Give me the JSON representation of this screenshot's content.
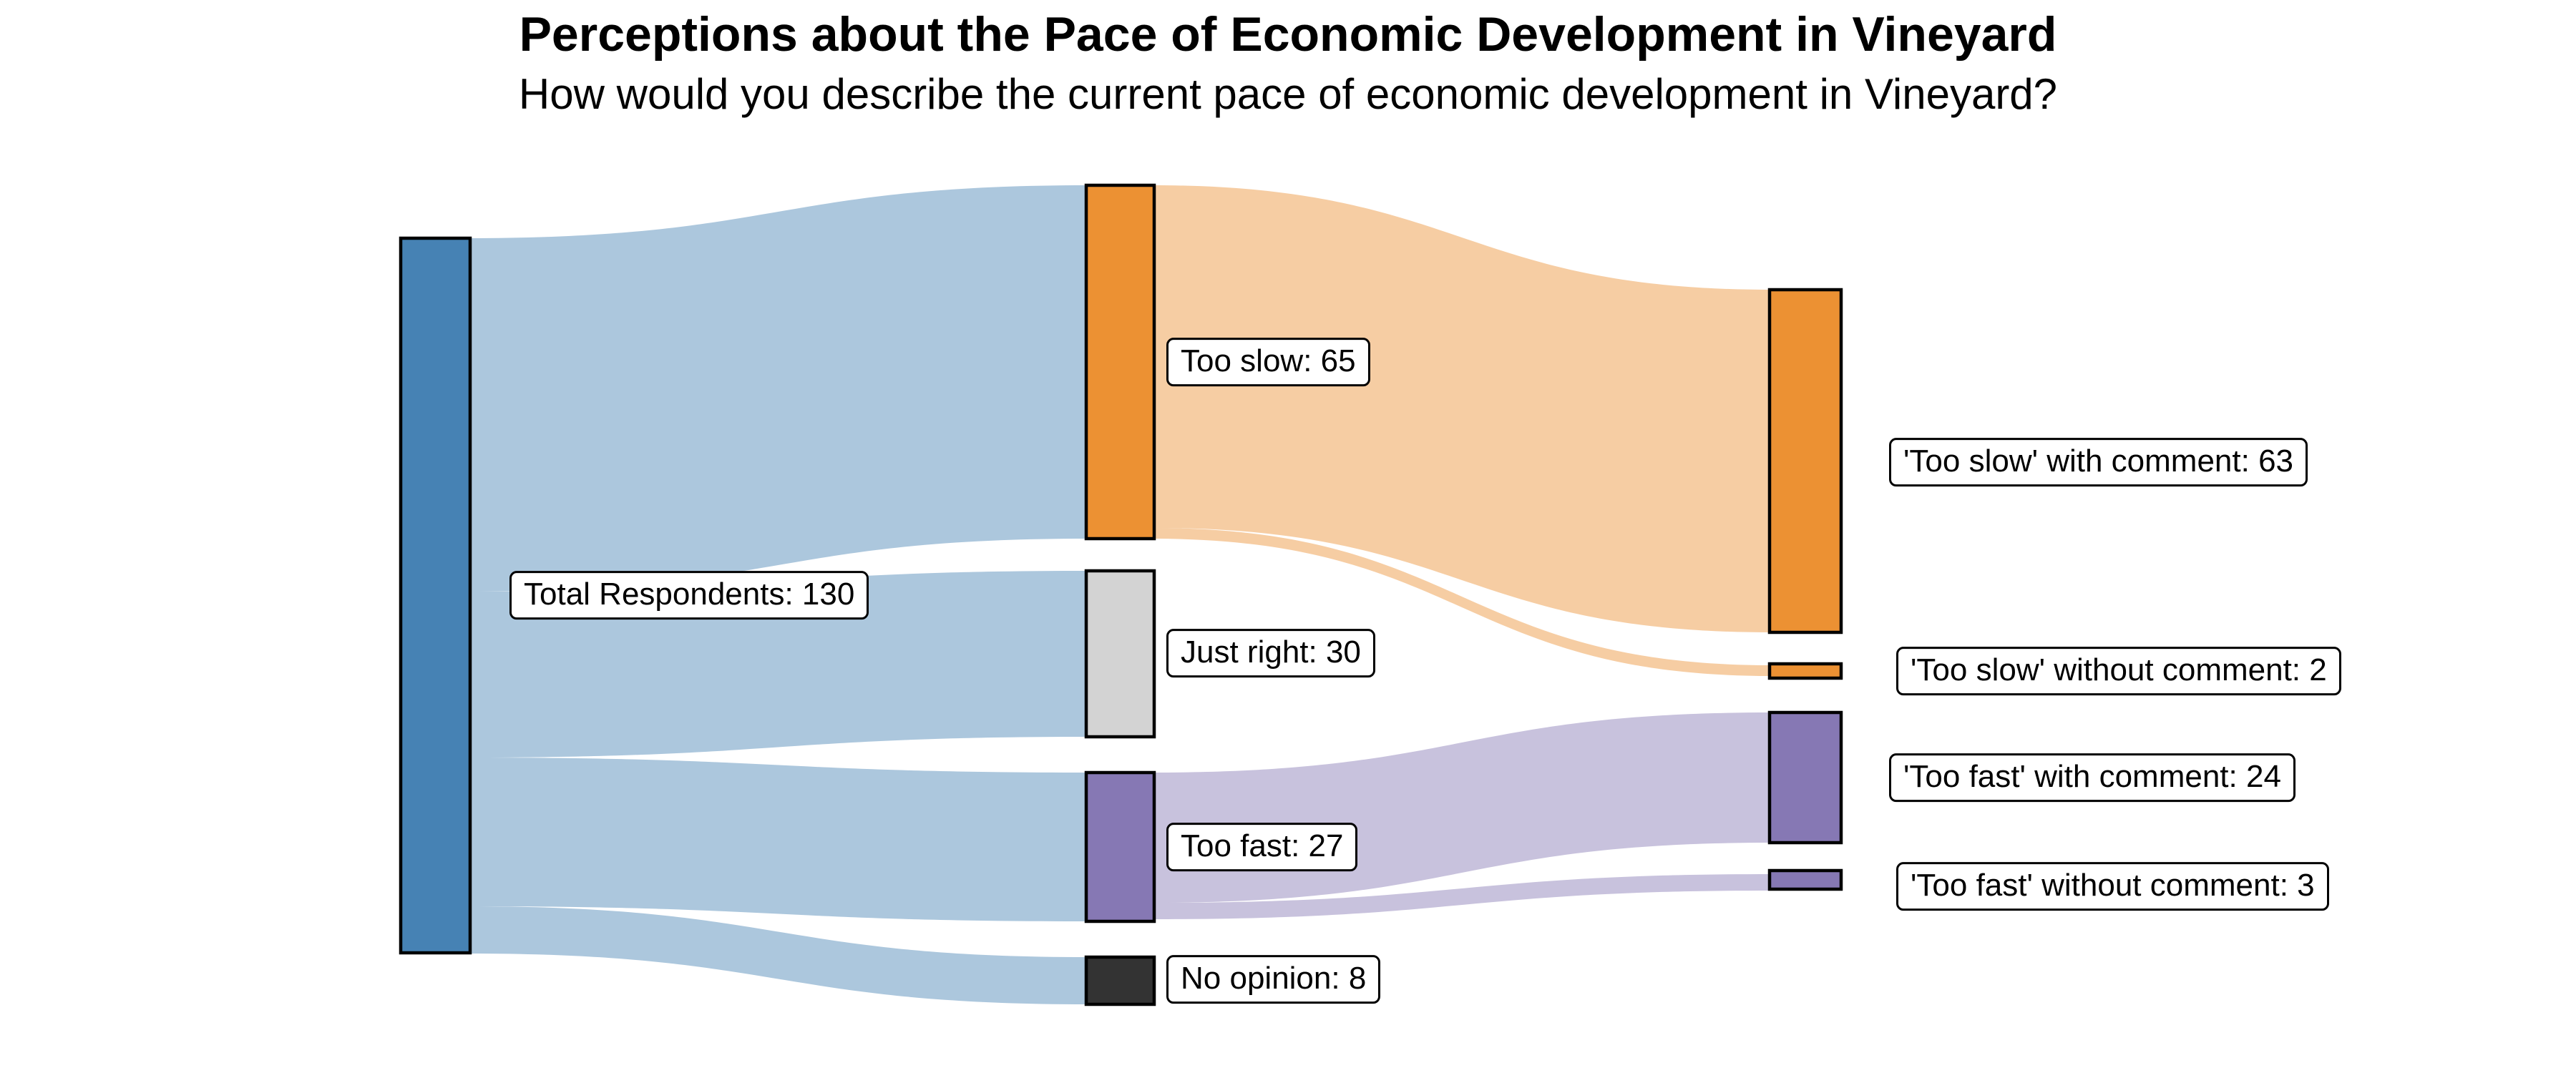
{
  "title": "Perceptions about the Pace of Economic Development in Vineyard",
  "subtitle": "How would you describe the current pace of economic development in Vineyard?",
  "colors": {
    "background": "#FFFFFF",
    "node_border": "#000000",
    "label_bg": "#FFFFFF",
    "label_border": "#000000",
    "total_blue": "#4682B4",
    "too_slow_orange": "#EC9133",
    "just_right_gray": "#D3D3D3",
    "too_fast_purple": "#8678B4",
    "no_opinion_dark": "#333333"
  },
  "chart_data": {
    "type": "sankey",
    "unit": "respondents",
    "link_opacity": 0.45,
    "nodes": [
      {
        "id": "total",
        "label": "Total Respondents",
        "value": 130,
        "display": "Total Respondents: 130",
        "color": "#4682B4",
        "column": 0
      },
      {
        "id": "too_slow",
        "label": "Too slow",
        "value": 65,
        "display": "Too slow: 65",
        "color": "#EC9133",
        "column": 1
      },
      {
        "id": "just_right",
        "label": "Just right",
        "value": 30,
        "display": "Just right: 30",
        "color": "#D3D3D3",
        "column": 1
      },
      {
        "id": "too_fast",
        "label": "Too fast",
        "value": 27,
        "display": "Too fast: 27",
        "color": "#8678B4",
        "column": 1
      },
      {
        "id": "no_opinion",
        "label": "No opinion",
        "value": 8,
        "display": "No opinion: 8",
        "color": "#333333",
        "column": 1
      },
      {
        "id": "slow_with",
        "label": "'Too slow' with comment",
        "value": 63,
        "display": "'Too slow' with comment: 63",
        "color": "#EC9133",
        "column": 2
      },
      {
        "id": "slow_without",
        "label": "'Too slow' without comment",
        "value": 2,
        "display": "'Too slow' without comment: 2",
        "color": "#EC9133",
        "column": 2
      },
      {
        "id": "fast_with",
        "label": "'Too fast' with comment",
        "value": 24,
        "display": "'Too fast' with comment: 24",
        "color": "#8678B4",
        "column": 2
      },
      {
        "id": "fast_without",
        "label": "'Too fast' without comment",
        "value": 3,
        "display": "'Too fast' without comment: 3",
        "color": "#8678B4",
        "column": 2
      }
    ],
    "links": [
      {
        "source": "total",
        "target": "too_slow",
        "value": 65
      },
      {
        "source": "total",
        "target": "just_right",
        "value": 30
      },
      {
        "source": "total",
        "target": "too_fast",
        "value": 27
      },
      {
        "source": "total",
        "target": "no_opinion",
        "value": 8
      },
      {
        "source": "too_slow",
        "target": "slow_with",
        "value": 63
      },
      {
        "source": "too_slow",
        "target": "slow_without",
        "value": 2
      },
      {
        "source": "too_fast",
        "target": "fast_with",
        "value": 24
      },
      {
        "source": "too_fast",
        "target": "fast_without",
        "value": 3
      }
    ]
  }
}
